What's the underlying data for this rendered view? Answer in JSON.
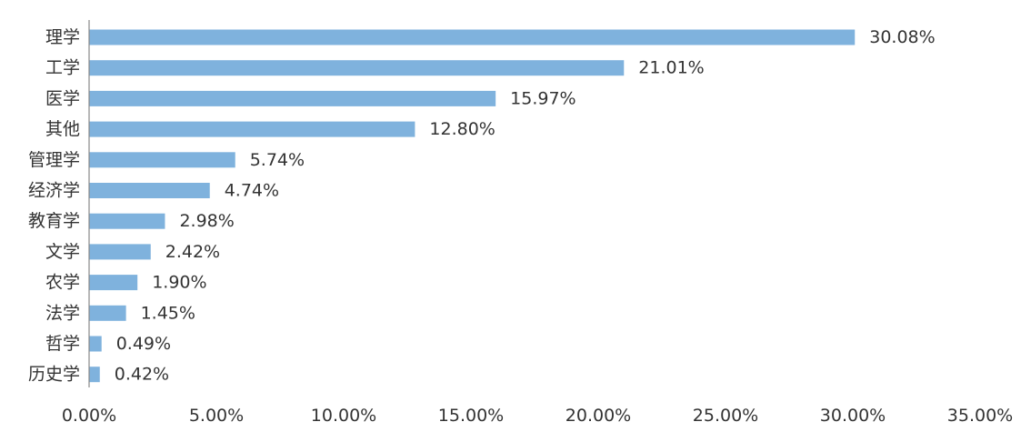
{
  "chart_data": {
    "type": "bar",
    "orientation": "horizontal",
    "categories": [
      "理学",
      "工学",
      "医学",
      "其他",
      "管理学",
      "经济学",
      "教育学",
      "文学",
      "农学",
      "法学",
      "哲学",
      "历史学"
    ],
    "values": [
      30.08,
      21.01,
      15.97,
      12.8,
      5.74,
      4.74,
      2.98,
      2.42,
      1.9,
      1.45,
      0.49,
      0.42
    ],
    "value_labels": [
      "30.08%",
      "21.01%",
      "15.97%",
      "12.80%",
      "5.74%",
      "4.74%",
      "2.98%",
      "2.42%",
      "1.90%",
      "1.45%",
      "0.49%",
      "0.42%"
    ],
    "x_ticks": [
      0,
      5,
      10,
      15,
      20,
      25,
      30,
      35
    ],
    "x_tick_labels": [
      "0.00%",
      "5.00%",
      "10.00%",
      "15.00%",
      "20.00%",
      "25.00%",
      "30.00%",
      "35.00%"
    ],
    "xlim": [
      0,
      35
    ],
    "grid": false,
    "legend": "none",
    "title": "",
    "xlabel": "",
    "ylabel": "",
    "bar_color": "#7fb2dd",
    "text_color": "#333333",
    "axis_color": "#888888"
  }
}
